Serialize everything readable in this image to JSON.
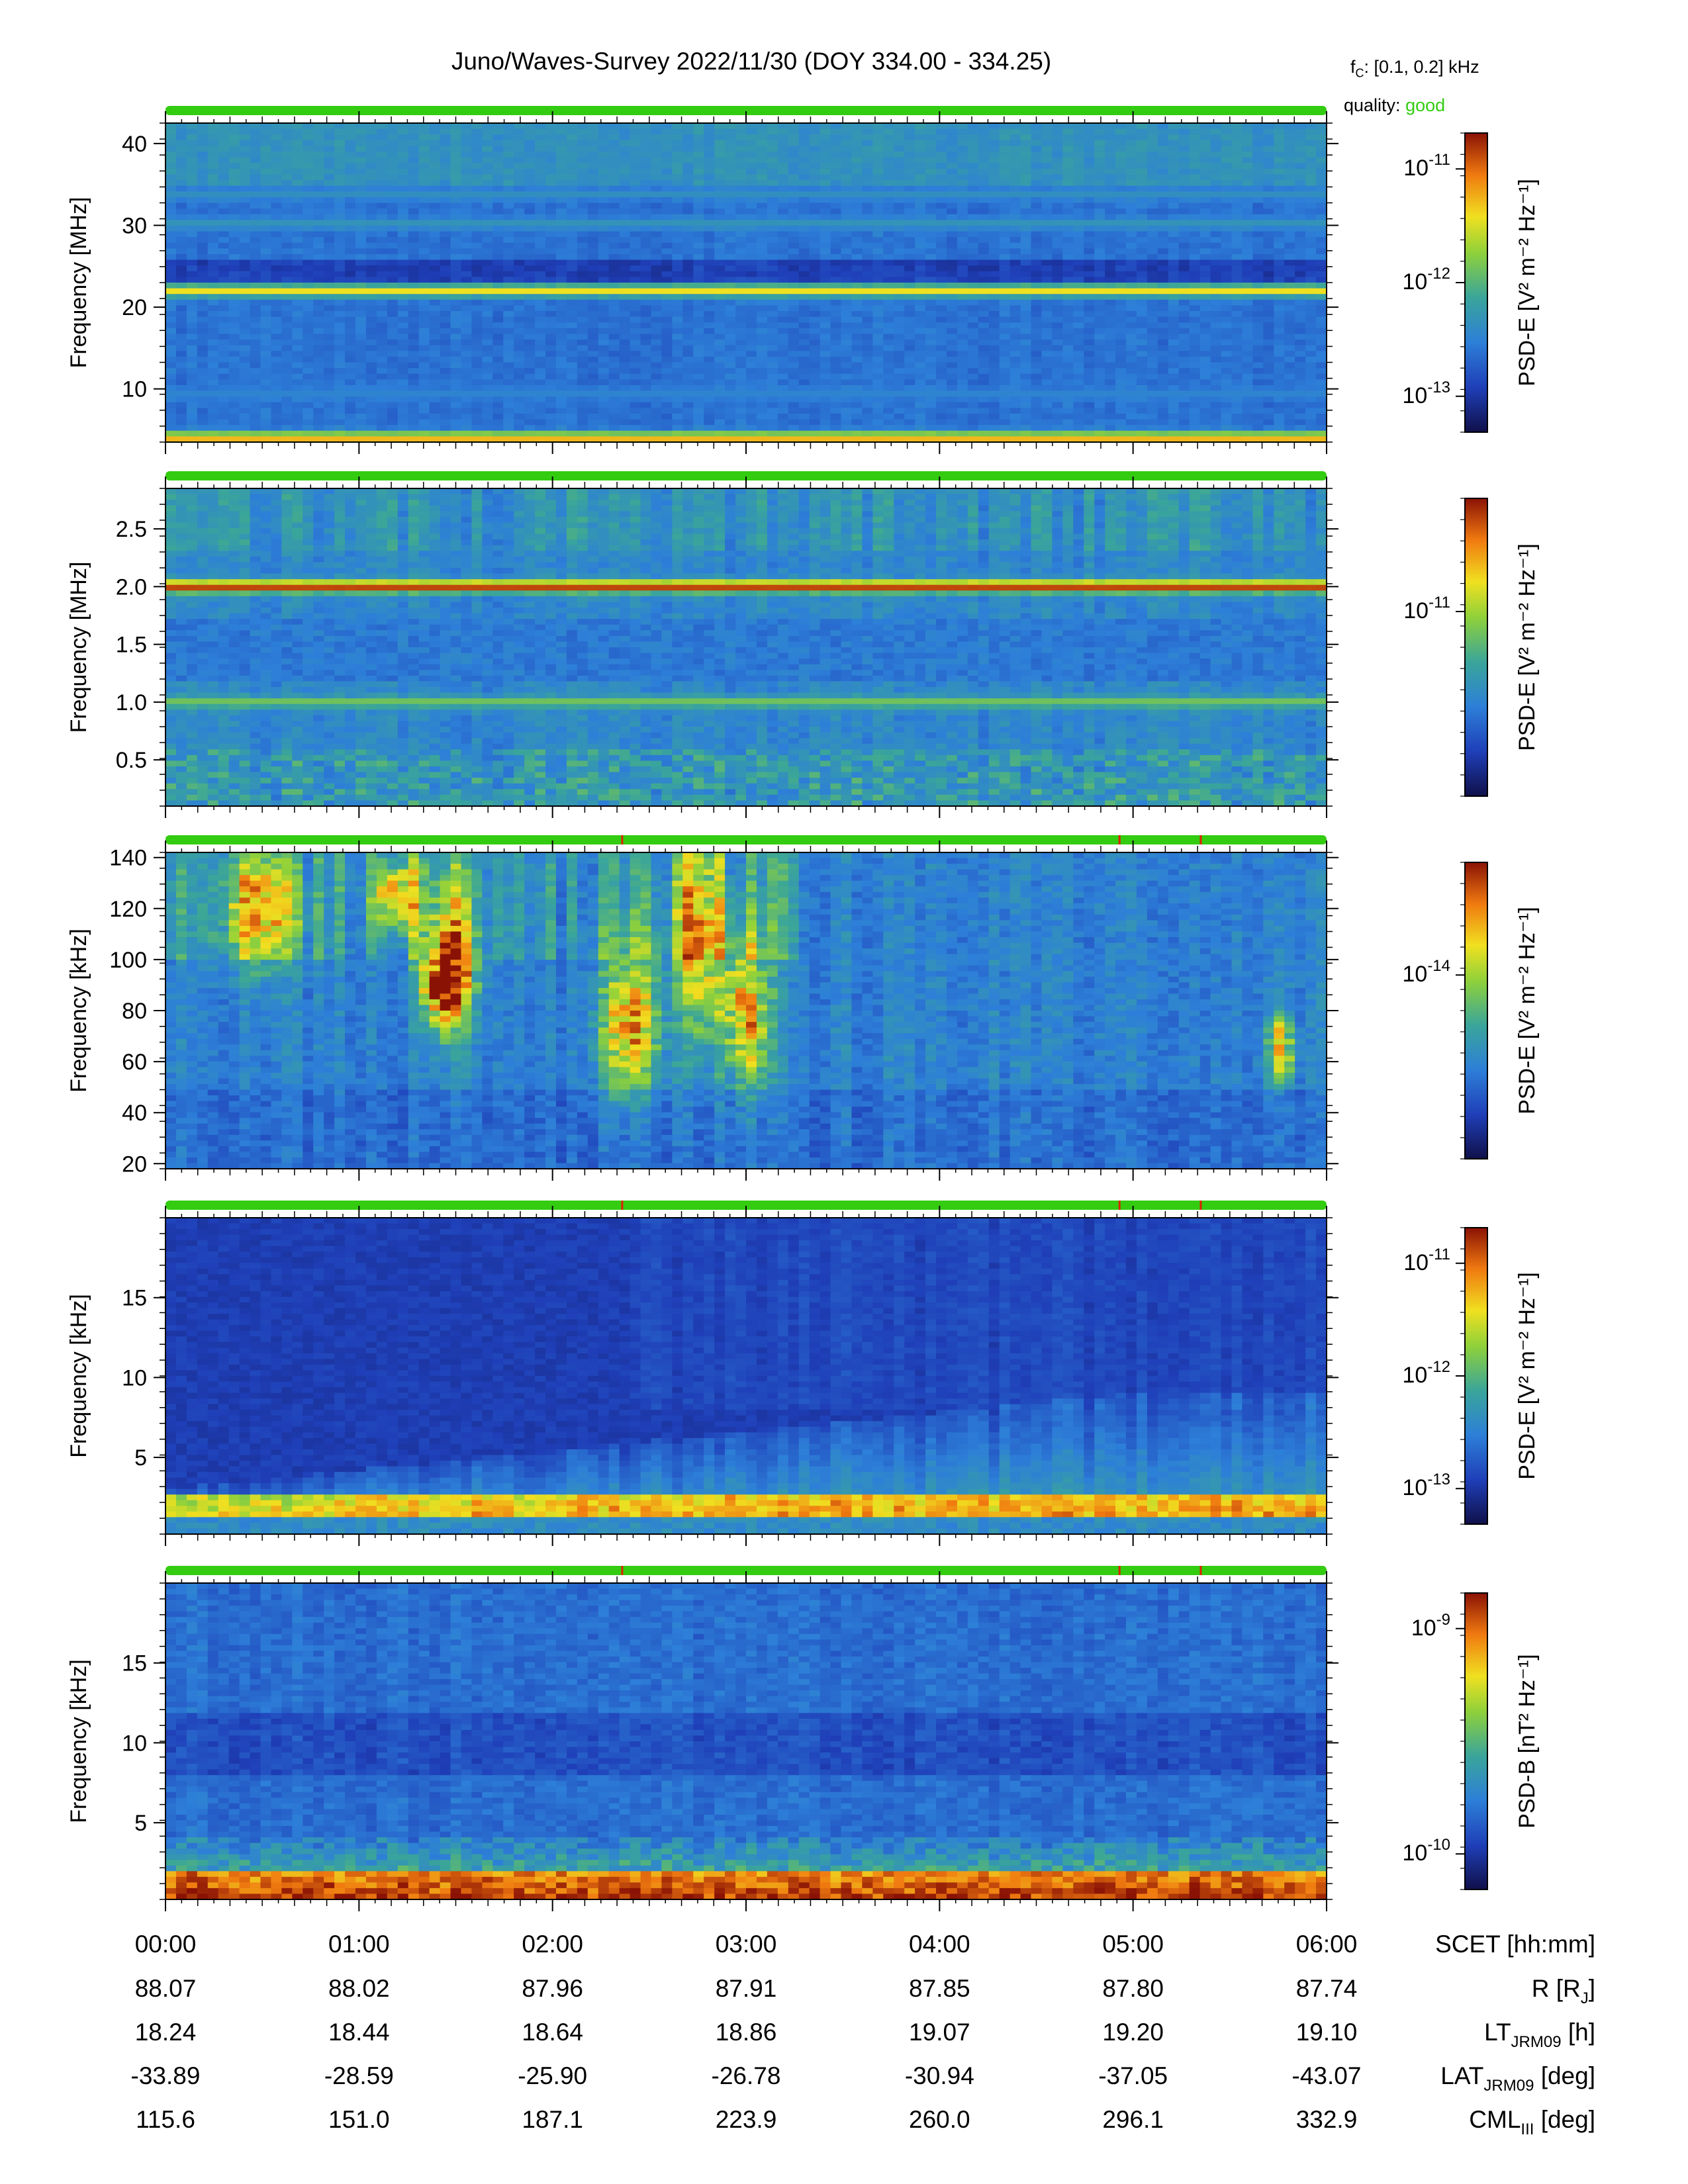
{
  "title": "Juno/Waves-Survey  2022/11/30 (DOY 334.00 - 334.25)",
  "fc": {
    "prefix": "f",
    "sub": "C",
    "text": ": [0.1, 0.2] kHz"
  },
  "quality": {
    "label": "quality:",
    "value": "good",
    "color": "#33cc11"
  },
  "colors": {
    "quality_bar": "#33cc11",
    "flag_mark": "#dd2200"
  },
  "chart_data": [
    {
      "type": "heatmap",
      "ylabel": "Frequency [MHz]",
      "y_ticks": [
        10,
        20,
        30,
        40
      ],
      "ylim": [
        3.5,
        42.5
      ],
      "colorbar": {
        "label": "PSD-E [V² m⁻² Hz⁻¹]",
        "quantity": "PSD-E",
        "unit": "V2 m-2 Hz-1",
        "scale": "log",
        "range": [
          3e-14,
          6e-11
        ],
        "ticks": [
          1e-13,
          1e-12,
          1e-11
        ]
      },
      "bands": [
        {
          "y": 22,
          "level": 0.72
        },
        {
          "y": 30.2,
          "level": 0.38
        },
        {
          "y": 33.8,
          "level": 0.36
        },
        {
          "y": 9.4,
          "level": 0.32
        },
        {
          "y": 4.0,
          "level": 0.8
        }
      ],
      "flag_marks_hours": []
    },
    {
      "type": "heatmap",
      "ylabel": "Frequency [MHz]",
      "y_ticks": [
        0.5,
        1.0,
        1.5,
        2.0,
        2.5
      ],
      "y_tick_labels": [
        "0.5",
        "1.0",
        "1.5",
        "2.0",
        "2.5"
      ],
      "ylim": [
        0.1,
        2.85
      ],
      "colorbar": {
        "label": "PSD-E [V² m⁻² Hz⁻¹]",
        "quantity": "PSD-E",
        "unit": "V2 m-2 Hz-1",
        "scale": "log",
        "ticks": [
          1e-11
        ]
      },
      "bands": [
        {
          "y": 2.0,
          "level": 0.95
        },
        {
          "y": 1.0,
          "level": 0.55
        }
      ],
      "flag_marks_hours": []
    },
    {
      "type": "heatmap",
      "ylabel": "Frequency [kHz]",
      "y_ticks": [
        20,
        40,
        60,
        80,
        100,
        120,
        140
      ],
      "ylim": [
        18,
        142
      ],
      "colorbar": {
        "label": "PSD-E [V² m⁻² Hz⁻¹]",
        "quantity": "PSD-E",
        "unit": "V2 m-2 Hz-1",
        "scale": "log",
        "ticks": [
          1e-14
        ]
      },
      "bands": [],
      "flag_marks_hours": [
        2.36,
        4.93,
        5.35
      ]
    },
    {
      "type": "heatmap",
      "ylabel": "Frequency [kHz]",
      "y_ticks": [
        5,
        10,
        15
      ],
      "ylim": [
        0.2,
        20
      ],
      "colorbar": {
        "label": "PSD-E [V² m⁻² Hz⁻¹]",
        "quantity": "PSD-E",
        "unit": "V2 m-2 Hz-1",
        "scale": "log",
        "ticks": [
          1e-13,
          1e-12,
          1e-11
        ]
      },
      "bands": [],
      "flag_marks_hours": [
        2.36,
        4.93,
        5.35
      ]
    },
    {
      "type": "heatmap",
      "ylabel": "Frequency [kHz]",
      "y_ticks": [
        5,
        10,
        15
      ],
      "ylim": [
        0.2,
        20
      ],
      "colorbar": {
        "label": "PSD-B [nT² Hz⁻¹]",
        "quantity": "PSD-B",
        "unit": "nT2 Hz-1",
        "scale": "log",
        "ticks": [
          1e-10,
          1e-09
        ]
      },
      "bands": [],
      "flag_marks_hours": [
        2.36,
        4.93,
        5.35
      ]
    }
  ],
  "x_axis": {
    "label": "SCET [hh:mm]",
    "xlim_hours": [
      0,
      6
    ],
    "major_ticks_hours": [
      0,
      1,
      2,
      3,
      4,
      5,
      6
    ],
    "tick_labels": [
      "00:00",
      "01:00",
      "02:00",
      "03:00",
      "04:00",
      "05:00",
      "06:00"
    ]
  },
  "ephemeris": [
    {
      "label": "R [RJ]",
      "name": "R [R",
      "sub": "J",
      "tail": "]",
      "values": [
        "88.07",
        "88.02",
        "87.96",
        "87.91",
        "87.85",
        "87.80",
        "87.74"
      ]
    },
    {
      "label": "LT JRM09 [h]",
      "name": "LT",
      "sub": "JRM09",
      "tail": " [h]",
      "values": [
        "18.24",
        "18.44",
        "18.64",
        "18.86",
        "19.07",
        "19.20",
        "19.10"
      ]
    },
    {
      "label": "LAT JRM09 [deg]",
      "name": "LAT",
      "sub": "JRM09",
      "tail": " [deg]",
      "values": [
        "-33.89",
        "-28.59",
        "-25.90",
        "-26.78",
        "-30.94",
        "-37.05",
        "-43.07"
      ]
    },
    {
      "label": "CML III [deg]",
      "name": "CML",
      "sub": "III",
      "tail": " [deg]",
      "values": [
        "115.6",
        "151.0",
        "187.1",
        "223.9",
        "260.0",
        "296.1",
        "332.9"
      ]
    }
  ]
}
